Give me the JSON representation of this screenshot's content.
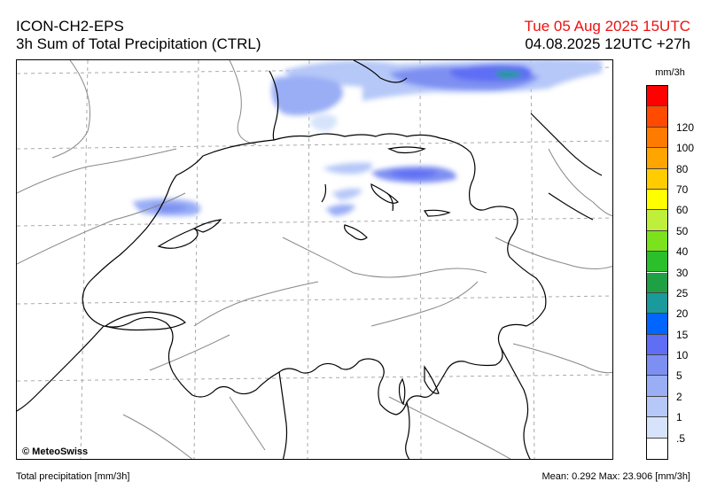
{
  "header": {
    "model": "ICON-CH2-EPS",
    "product": "3h Sum of Total Precipitation (CTRL)",
    "valid_time": "Tue 05 Aug 2025 15UTC",
    "run_time": "04.08.2025 12UTC +27h"
  },
  "colors": {
    "valid_time": "#ee1111",
    "border": "#000000",
    "contour": "#888888",
    "grid": "#aaaaaa"
  },
  "map": {
    "copyright": "© MeteoSwiss",
    "region": "Switzerland"
  },
  "legend": {
    "unit": "mm/3h",
    "levels": [
      {
        "label": "",
        "color": "#ff0000"
      },
      {
        "label": "120",
        "color": "#ff4a00"
      },
      {
        "label": "100",
        "color": "#ff7b00"
      },
      {
        "label": "80",
        "color": "#ffa500"
      },
      {
        "label": "70",
        "color": "#ffcc00"
      },
      {
        "label": "60",
        "color": "#ffff00"
      },
      {
        "label": "50",
        "color": "#bfef3a"
      },
      {
        "label": "40",
        "color": "#7ce21c"
      },
      {
        "label": "30",
        "color": "#2cbf2c"
      },
      {
        "label": "25",
        "color": "#20a044"
      },
      {
        "label": "20",
        "color": "#1a9a9a"
      },
      {
        "label": "15",
        "color": "#0066ff"
      },
      {
        "label": "10",
        "color": "#5f6ef4"
      },
      {
        "label": "5",
        "color": "#7e8ff2"
      },
      {
        "label": "2",
        "color": "#9aaef5"
      },
      {
        "label": "1",
        "color": "#b6c8f8"
      },
      {
        "label": ".5",
        "color": "#d6e3fb"
      },
      {
        "label": "",
        "color": "#ffffff"
      }
    ]
  },
  "footer": {
    "left": "Total precipitation [mm/3h]",
    "right": "Mean:   0.292 Max:  23.906 [mm/3h]"
  }
}
